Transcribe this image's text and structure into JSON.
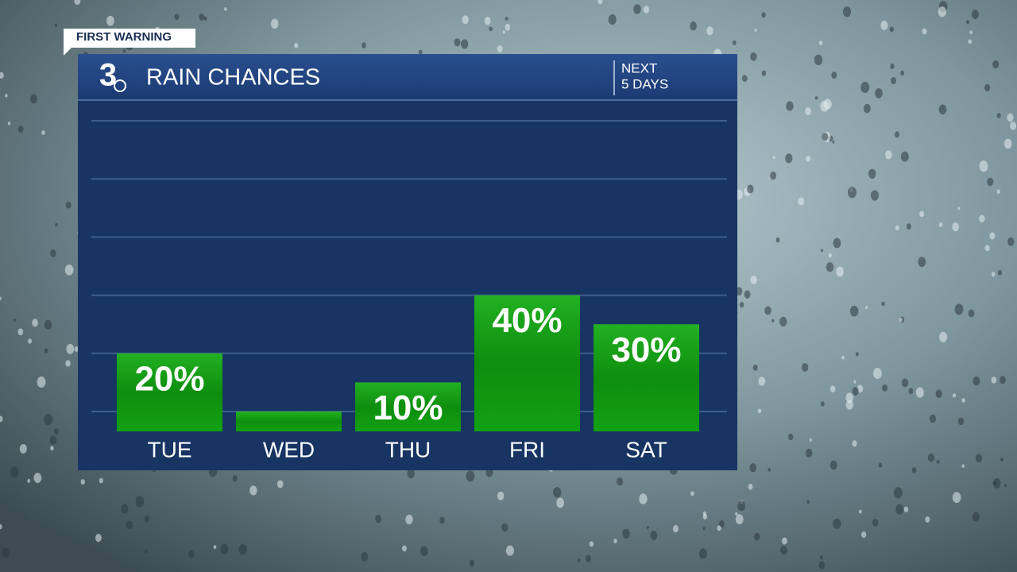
{
  "badge": "FIRST WARNING",
  "logo": "3",
  "chart_data": {
    "type": "bar",
    "title": "RAIN CHANCES",
    "subtitle_lines": [
      "NEXT",
      "5 DAYS"
    ],
    "categories": [
      "TUE",
      "WED",
      "THU",
      "FRI",
      "SAT"
    ],
    "values": [
      20,
      0,
      10,
      40,
      30
    ],
    "value_labels": [
      "20%",
      null,
      "10%",
      "40%",
      "30%"
    ],
    "color": "#19a019",
    "ylim": [
      0,
      100
    ],
    "yticks": [
      0,
      20,
      40,
      60,
      80,
      100
    ],
    "grid": true
  }
}
